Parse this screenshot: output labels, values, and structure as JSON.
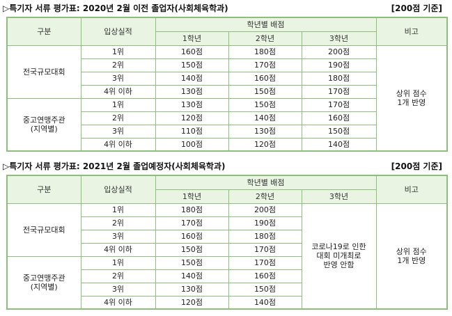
{
  "section1": {
    "title": "▷특기자 서류 평가표: 2020년 2월 이전 졸업자(사회체육학과)",
    "basis": "[200점 기준]",
    "headers": {
      "category": "구분",
      "achievement": "입상실적",
      "grade_group": "학년별 배점",
      "grade1": "1학년",
      "grade2": "2학년",
      "grade3": "3학년",
      "note": "비고"
    },
    "groups": [
      {
        "name": "전국규모대회",
        "rows": [
          {
            "rank": "1위",
            "g1": "160점",
            "g2": "180점",
            "g3": "200점"
          },
          {
            "rank": "2위",
            "g1": "150점",
            "g2": "170점",
            "g3": "190점"
          },
          {
            "rank": "3위",
            "g1": "140점",
            "g2": "160점",
            "g3": "180점"
          },
          {
            "rank": "4위 이하",
            "g1": "130점",
            "g2": "150점",
            "g3": "170점"
          }
        ]
      },
      {
        "name": "중고연맹주관",
        "name2": "(지역별)",
        "rows": [
          {
            "rank": "1위",
            "g1": "130점",
            "g2": "150점",
            "g3": "170점"
          },
          {
            "rank": "2위",
            "g1": "120점",
            "g2": "140점",
            "g3": "160점"
          },
          {
            "rank": "3위",
            "g1": "110점",
            "g2": "130점",
            "g3": "150점"
          },
          {
            "rank": "4위 이하",
            "g1": "100점",
            "g2": "120점",
            "g3": "140점"
          }
        ]
      }
    ],
    "note_line1": "상위 점수",
    "note_line2": "1개 반영"
  },
  "section2": {
    "title": "▷특기자 서류 평가표: 2021년 2월 졸업예정자(사회체육학과)",
    "basis": "[200점 기준]",
    "headers": {
      "category": "구분",
      "achievement": "입상실적",
      "grade_group": "학년별 배점",
      "grade1": "1학년",
      "grade2": "2학년",
      "grade3": "3학년",
      "note": "비고"
    },
    "groups": [
      {
        "name": "전국규모대회",
        "rows": [
          {
            "rank": "1위",
            "g1": "180점",
            "g2": "200점"
          },
          {
            "rank": "2위",
            "g1": "170점",
            "g2": "190점"
          },
          {
            "rank": "3위",
            "g1": "160점",
            "g2": "180점"
          },
          {
            "rank": "4위 이하",
            "g1": "150점",
            "g2": "170점"
          }
        ]
      },
      {
        "name": "중고연맹주관",
        "name2": "(지역별)",
        "rows": [
          {
            "rank": "1위",
            "g1": "150점",
            "g2": "170점"
          },
          {
            "rank": "2위",
            "g1": "140점",
            "g2": "160점"
          },
          {
            "rank": "3위",
            "g1": "130점",
            "g2": "150점"
          },
          {
            "rank": "4위 이하",
            "g1": "120점",
            "g2": "140점"
          }
        ]
      }
    ],
    "covid_line1": "코로나19로 인한",
    "covid_line2": "대회 미개최로",
    "covid_line3": "반영 안함",
    "note_line1": "상위 점수",
    "note_line2": "1개 반영"
  },
  "colors": {
    "border": "#8cbf7a",
    "header_bg": "#e9f4e3"
  }
}
